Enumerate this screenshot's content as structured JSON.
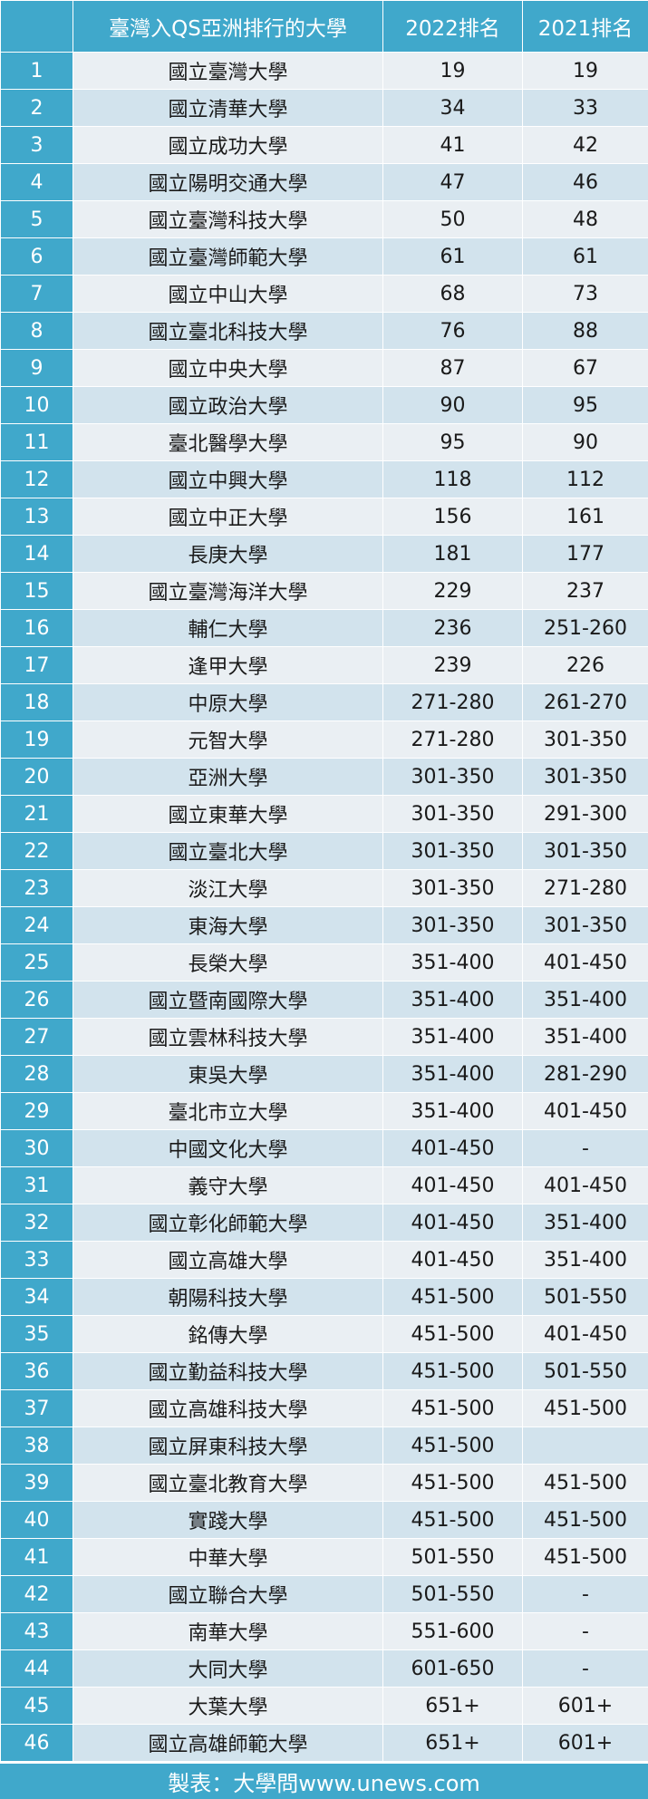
{
  "table": {
    "headers": [
      "",
      "臺灣入QS亞洲排行的大學",
      "2022排名",
      "2021排名"
    ],
    "rows": [
      [
        "1",
        "國立臺灣大學",
        "19",
        "19"
      ],
      [
        "2",
        "國立清華大學",
        "34",
        "33"
      ],
      [
        "3",
        "國立成功大學",
        "41",
        "42"
      ],
      [
        "4",
        "國立陽明交通大學",
        "47",
        "46"
      ],
      [
        "5",
        "國立臺灣科技大學",
        "50",
        "48"
      ],
      [
        "6",
        "國立臺灣師範大學",
        "61",
        "61"
      ],
      [
        "7",
        "國立中山大學",
        "68",
        "73"
      ],
      [
        "8",
        "國立臺北科技大學",
        "76",
        "88"
      ],
      [
        "9",
        "國立中央大學",
        "87",
        "67"
      ],
      [
        "10",
        "國立政治大學",
        "90",
        "95"
      ],
      [
        "11",
        "臺北醫學大學",
        "95",
        "90"
      ],
      [
        "12",
        "國立中興大學",
        "118",
        "112"
      ],
      [
        "13",
        "國立中正大學",
        "156",
        "161"
      ],
      [
        "14",
        "長庚大學",
        "181",
        "177"
      ],
      [
        "15",
        "國立臺灣海洋大學",
        "229",
        "237"
      ],
      [
        "16",
        "輔仁大學",
        "236",
        "251-260"
      ],
      [
        "17",
        "逢甲大學",
        "239",
        "226"
      ],
      [
        "18",
        "中原大學",
        "271-280",
        "261-270"
      ],
      [
        "19",
        "元智大學",
        "271-280",
        "301-350"
      ],
      [
        "20",
        "亞洲大學",
        "301-350",
        "301-350"
      ],
      [
        "21",
        "國立東華大學",
        "301-350",
        "291-300"
      ],
      [
        "22",
        "國立臺北大學",
        "301-350",
        "301-350"
      ],
      [
        "23",
        "淡江大學",
        "301-350",
        "271-280"
      ],
      [
        "24",
        "東海大學",
        "301-350",
        "301-350"
      ],
      [
        "25",
        "長榮大學",
        "351-400",
        "401-450"
      ],
      [
        "26",
        "國立暨南國際大學",
        "351-400",
        "351-400"
      ],
      [
        "27",
        "國立雲林科技大學",
        "351-400",
        "351-400"
      ],
      [
        "28",
        "東吳大學",
        "351-400",
        "281-290"
      ],
      [
        "29",
        "臺北市立大學",
        "351-400",
        "401-450"
      ],
      [
        "30",
        "中國文化大學",
        "401-450",
        "-"
      ],
      [
        "31",
        "義守大學",
        "401-450",
        "401-450"
      ],
      [
        "32",
        "國立彰化師範大學",
        "401-450",
        "351-400"
      ],
      [
        "33",
        "國立高雄大學",
        "401-450",
        "351-400"
      ],
      [
        "34",
        "朝陽科技大學",
        "451-500",
        "501-550"
      ],
      [
        "35",
        "銘傳大學",
        "451-500",
        "401-450"
      ],
      [
        "36",
        "國立勤益科技大學",
        "451-500",
        "501-550"
      ],
      [
        "37",
        "國立高雄科技大學",
        "451-500",
        "451-500"
      ],
      [
        "38",
        "國立屏東科技大學",
        "451-500",
        ""
      ],
      [
        "39",
        "國立臺北教育大學",
        "451-500",
        "451-500"
      ],
      [
        "40",
        "實踐大學",
        "451-500",
        "451-500"
      ],
      [
        "41",
        "中華大學",
        "501-550",
        "451-500"
      ],
      [
        "42",
        "國立聯合大學",
        "501-550",
        "-"
      ],
      [
        "43",
        "南華大學",
        "551-600",
        "-"
      ],
      [
        "44",
        "大同大學",
        "601-650",
        "-"
      ],
      [
        "45",
        "大葉大學",
        "651+",
        "601+"
      ],
      [
        "46",
        "國立高雄師範大學",
        "651+",
        "601+"
      ]
    ]
  },
  "footer": {
    "credit": "製表：大學問www.unews.com"
  },
  "colors": {
    "header_blue": "#40a8cb",
    "row_light": "#eaeff3",
    "row_dark": "#d2e3ed"
  }
}
